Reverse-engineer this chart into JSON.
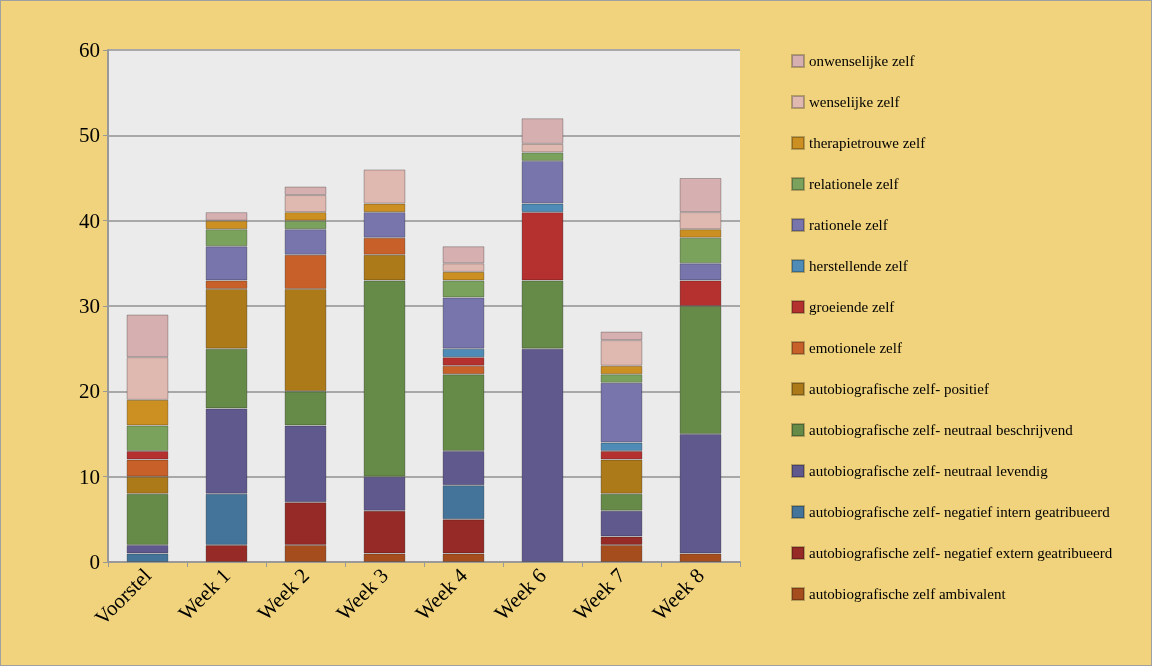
{
  "chart_data": {
    "type": "bar",
    "stacked": true,
    "categories": [
      "Voorstel",
      "Week 1",
      "Week 2",
      "Week 3",
      "Week 4",
      "Week 6",
      "Week 7",
      "Week 8"
    ],
    "ylim": [
      0,
      60
    ],
    "yticks": [
      0,
      10,
      20,
      30,
      40,
      50,
      60
    ],
    "grid": "y",
    "legend": "right",
    "series": [
      {
        "name": "autobiografische zelf ambivalent",
        "color": "#a64d1e",
        "values": [
          0,
          0,
          2,
          1,
          1,
          0,
          2,
          1
        ]
      },
      {
        "name": "autobiografische zelf- negatief extern geatribueerd",
        "color": "#962a26",
        "values": [
          0,
          2,
          5,
          5,
          4,
          0,
          1,
          0
        ]
      },
      {
        "name": "autobiografische zelf- negatief intern geatribueerd",
        "color": "#44749a",
        "values": [
          1,
          6,
          0,
          0,
          4,
          0,
          0,
          0
        ]
      },
      {
        "name": "autobiografische zelf- neutraal levendig",
        "color": "#60598e",
        "values": [
          1,
          10,
          9,
          4,
          4,
          25,
          3,
          14
        ]
      },
      {
        "name": "autobiografische zelf- neutraal beschrijvend",
        "color": "#668a48",
        "values": [
          6,
          7,
          4,
          23,
          9,
          8,
          2,
          15
        ]
      },
      {
        "name": "autobiografische zelf- positief",
        "color": "#ad7a19",
        "values": [
          2,
          7,
          12,
          3,
          0,
          0,
          4,
          0
        ]
      },
      {
        "name": "emotionele zelf",
        "color": "#c86129",
        "values": [
          2,
          1,
          4,
          2,
          1,
          0,
          0,
          0
        ]
      },
      {
        "name": "groeiende zelf",
        "color": "#b53130",
        "values": [
          1,
          0,
          0,
          0,
          1,
          8,
          1,
          3
        ]
      },
      {
        "name": "herstellende zelf",
        "color": "#4e8bb6",
        "values": [
          0,
          0,
          0,
          0,
          1,
          1,
          1,
          0
        ]
      },
      {
        "name": "rationele zelf",
        "color": "#7775ab",
        "values": [
          0,
          4,
          3,
          3,
          6,
          5,
          7,
          2
        ]
      },
      {
        "name": "relationele zelf",
        "color": "#7ba25c",
        "values": [
          3,
          2,
          1,
          0,
          2,
          1,
          1,
          3
        ]
      },
      {
        "name": "therapietrouwe zelf",
        "color": "#cc8f22",
        "values": [
          3,
          1,
          1,
          1,
          1,
          0,
          1,
          1
        ]
      },
      {
        "name": "wenselijke zelf",
        "color": "#dfb8b0",
        "values": [
          5,
          0,
          2,
          4,
          1,
          1,
          3,
          2
        ]
      },
      {
        "name": "onwenselijke zelf",
        "color": "#d6b0b0",
        "values": [
          5,
          1,
          1,
          0,
          2,
          3,
          1,
          4
        ]
      }
    ]
  }
}
